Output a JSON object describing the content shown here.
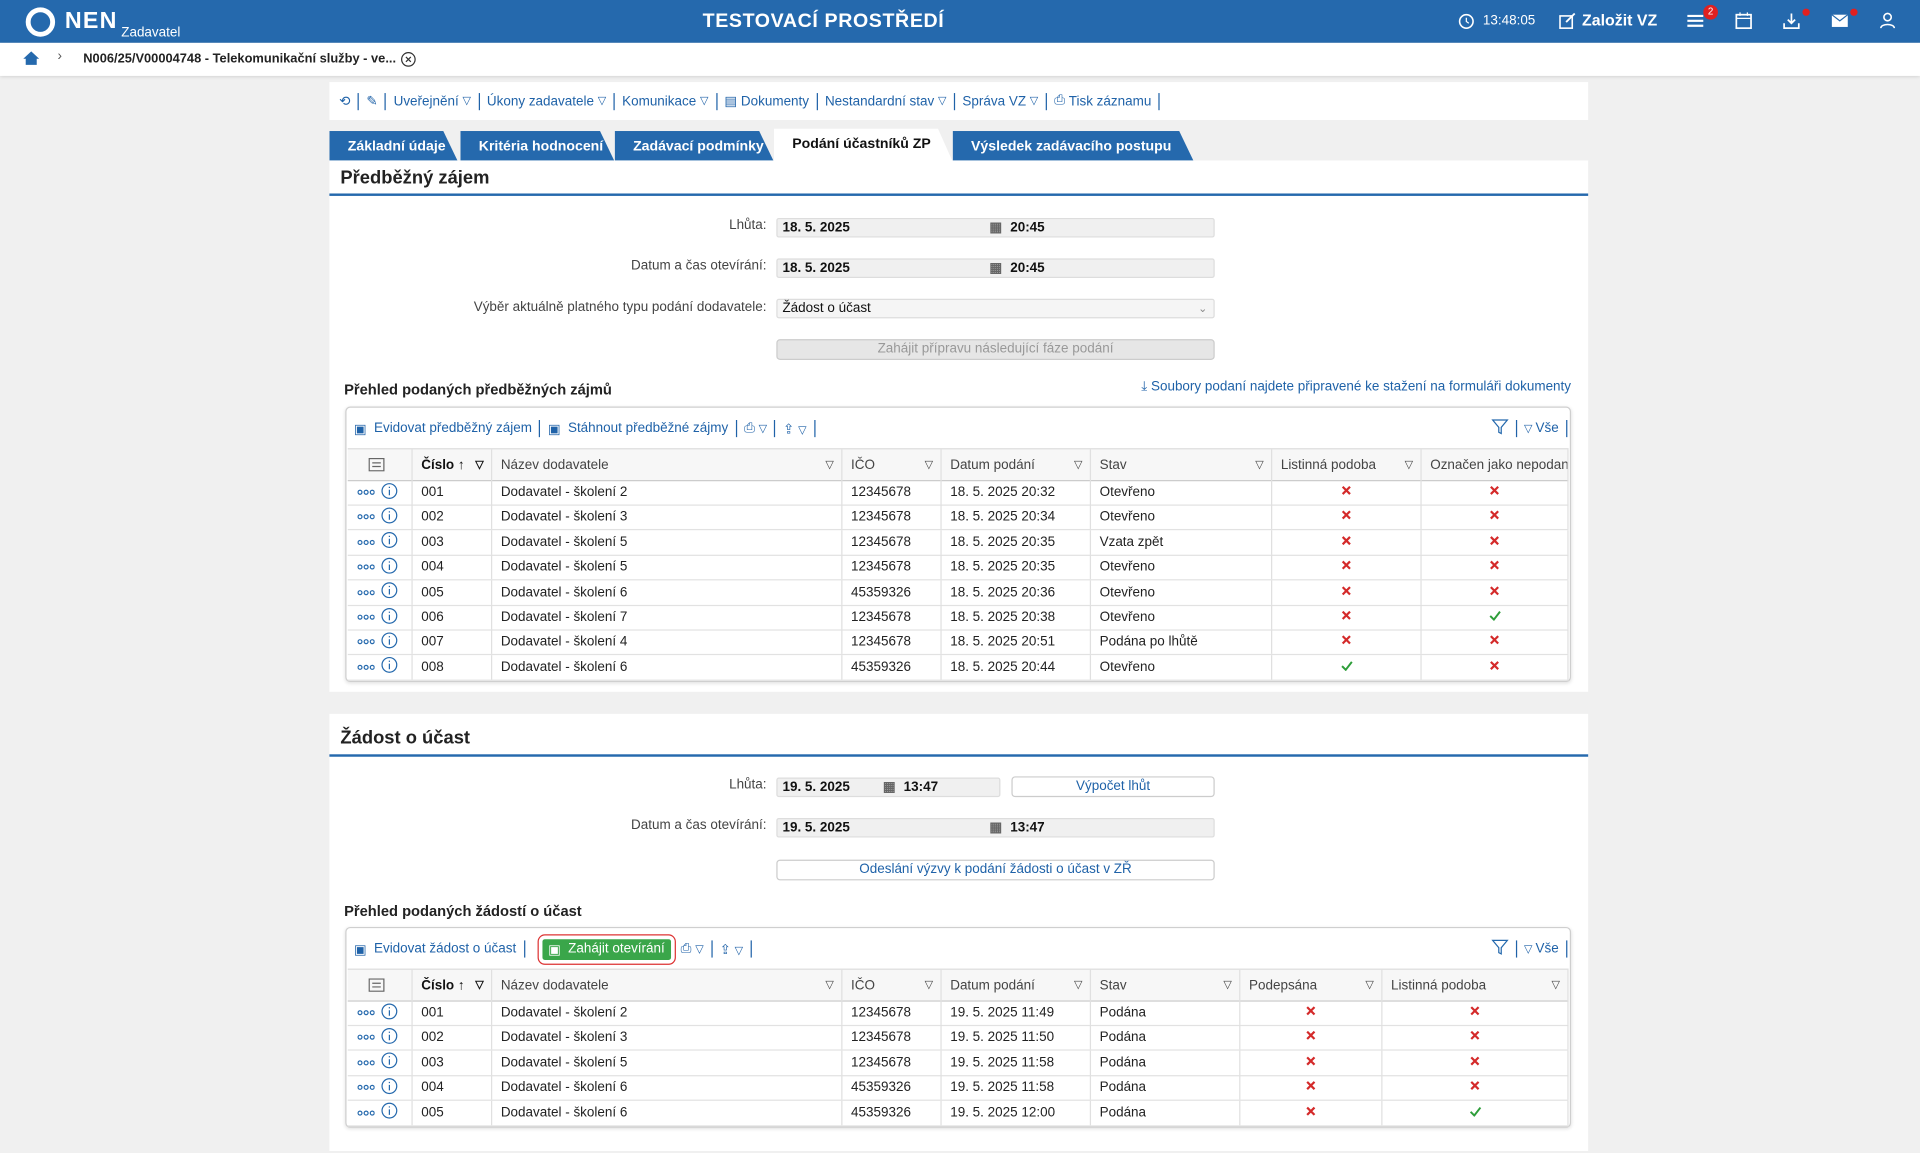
{
  "header": {
    "logo": "NEN",
    "role": "Zadavatel",
    "environment": "TESTOVACÍ PROSTŘEDÍ",
    "time": "13:48:05",
    "create": "Založit VZ",
    "badge": "2"
  },
  "breadcrumb": "N006/25/V00004748 - Telekomunikační služby - ve...",
  "toolbar": [
    "Uveřejnění",
    "Úkony zadavatele",
    "Komunikace",
    "Dokumenty",
    "Nestandardní stav",
    "Správa VZ",
    "Tisk záznamu"
  ],
  "tabs": [
    "Základní údaje",
    "Kritéria hodnocení",
    "Zadávací podmínky",
    "Podání účastníků ZP",
    "Výsledek zadávacího postupu"
  ],
  "section1": {
    "title": "Předběžný zájem",
    "fields": [
      {
        "label": "Lhůta:",
        "date": "18. 5. 2025",
        "time": "20:45"
      },
      {
        "label": "Datum a čas otevírání:",
        "date": "18. 5. 2025",
        "time": "20:45"
      }
    ],
    "select_label": "Výběr aktuálně platného typu podání dodavatele:",
    "select_value": "Žádost o účast",
    "button": "Zahájit přípravu následující fáze podání",
    "table_title": "Přehled podaných předběžných zájmů",
    "download_link": "Soubory podaní najdete připravené ke stažení na formuláři dokumenty",
    "table": {
      "actions": [
        "Evidovat předběžný zájem",
        "Stáhnout předběžné zájmy"
      ],
      "filter": "Vše",
      "columns": [
        "Číslo",
        "Název dodavatele",
        "IČO",
        "Datum podání",
        "Stav",
        "Listinná podoba",
        "Označen jako nepodaný"
      ],
      "rows": [
        [
          "001",
          "Dodavatel - školení 2",
          "12345678",
          "18. 5. 2025 20:32",
          "Otevřeno",
          false,
          false
        ],
        [
          "002",
          "Dodavatel - školení 3",
          "12345678",
          "18. 5. 2025 20:34",
          "Otevřeno",
          false,
          false
        ],
        [
          "003",
          "Dodavatel - školení 5",
          "12345678",
          "18. 5. 2025 20:35",
          "Vzata zpět",
          false,
          false
        ],
        [
          "004",
          "Dodavatel - školení 5",
          "12345678",
          "18. 5. 2025 20:35",
          "Otevřeno",
          false,
          false
        ],
        [
          "005",
          "Dodavatel - školení 6",
          "45359326",
          "18. 5. 2025 20:36",
          "Otevřeno",
          false,
          false
        ],
        [
          "006",
          "Dodavatel - školení 7",
          "12345678",
          "18. 5. 2025 20:38",
          "Otevřeno",
          false,
          true
        ],
        [
          "007",
          "Dodavatel - školení 4",
          "12345678",
          "18. 5. 2025 20:51",
          "Podána po lhůtě",
          false,
          false
        ],
        [
          "008",
          "Dodavatel - školení 6",
          "45359326",
          "18. 5. 2025 20:44",
          "Otevřeno",
          true,
          false
        ]
      ]
    }
  },
  "section2": {
    "title": "Žádost o účast",
    "fields": [
      {
        "label": "Lhůta:",
        "date": "19. 5. 2025",
        "time": "13:47"
      },
      {
        "label": "Datum a čas otevírání:",
        "date": "19. 5. 2025",
        "time": "13:47"
      }
    ],
    "calc_button": "Výpočet lhůt",
    "button": "Odeslání výzvy k podání žádosti o účast v ZŘ",
    "table_title": "Přehled podaných žádostí o účast",
    "table": {
      "actions": [
        "Evidovat žádost o účast",
        "Zahájit otevírání"
      ],
      "filter": "Vše",
      "columns": [
        "Číslo",
        "Název dodavatele",
        "IČO",
        "Datum podání",
        "Stav",
        "Podepsána",
        "Listinná podoba"
      ],
      "rows": [
        [
          "001",
          "Dodavatel - školení 2",
          "12345678",
          "19. 5. 2025 11:49",
          "Podána",
          false,
          false
        ],
        [
          "002",
          "Dodavatel - školení 3",
          "12345678",
          "19. 5. 2025 11:50",
          "Podána",
          false,
          false
        ],
        [
          "003",
          "Dodavatel - školení 5",
          "12345678",
          "19. 5. 2025 11:58",
          "Podána",
          false,
          false
        ],
        [
          "004",
          "Dodavatel - školení 6",
          "45359326",
          "19. 5. 2025 11:58",
          "Podána",
          false,
          false
        ],
        [
          "005",
          "Dodavatel - školení 6",
          "45359326",
          "19. 5. 2025 12:00",
          "Podána",
          false,
          true
        ]
      ]
    }
  }
}
